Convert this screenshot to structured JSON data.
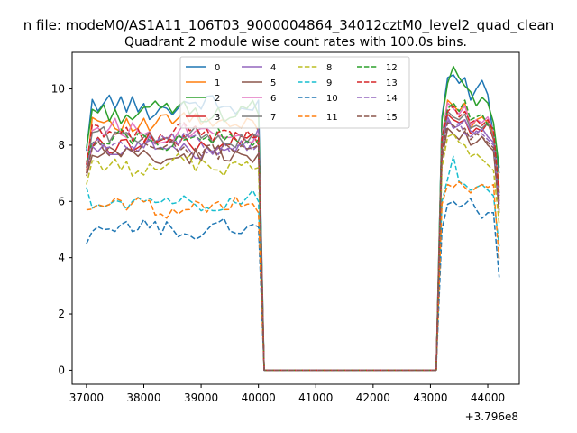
{
  "chart_data": {
    "type": "line",
    "suptitle": "n file: modeM0/AS1A11_106T03_9000004864_34012cztM0_level2_quad_clean",
    "title": "Quadrant 2 module wise count rates with 100.0s bins.",
    "xlabel": "",
    "ylabel": "",
    "x_offset_label": "+3.796e8",
    "xlim": [
      36750,
      44550
    ],
    "ylim": [
      -0.5,
      11.3
    ],
    "xticks": [
      37000,
      38000,
      39000,
      40000,
      41000,
      42000,
      43000,
      44000
    ],
    "xtick_labels": [
      "37000",
      "38000",
      "39000",
      "40000",
      "41000",
      "42000",
      "43000",
      "44000"
    ],
    "yticks": [
      0,
      2,
      4,
      6,
      8,
      10
    ],
    "ytick_labels": [
      "0",
      "2",
      "4",
      "6",
      "8",
      "10"
    ],
    "legend_location": "upper center",
    "grid": false,
    "x": {
      "segment1": {
        "start": 37000,
        "step": 100,
        "count": 31
      },
      "gap": [
        40100,
        43100
      ],
      "segment2": {
        "start": 43100,
        "step": 100,
        "count": 12
      }
    },
    "series": [
      {
        "name": "0",
        "color": "#1f77b4",
        "dash": "solid",
        "seg1_level": 9.4,
        "seg1_start": 7.8,
        "seg1_end": 9.6,
        "seg1_amp": 0.35,
        "seg2": [
          2.6,
          9.0,
          10.4,
          10.5,
          10.2,
          10.4,
          9.6,
          10.0,
          10.3,
          9.8,
          8.3,
          7.0
        ]
      },
      {
        "name": "1",
        "color": "#ff7f0e",
        "dash": "solid",
        "seg1_level": 8.8,
        "seg1_start": 7.0,
        "seg1_end": 8.5,
        "seg1_amp": 0.3,
        "seg2": [
          2.3,
          8.2,
          9.6,
          9.4,
          9.2,
          9.5,
          8.6,
          8.9,
          9.0,
          8.8,
          8.4,
          6.5
        ]
      },
      {
        "name": "2",
        "color": "#2ca02c",
        "dash": "solid",
        "seg1_level": 9.2,
        "seg1_start": 7.9,
        "seg1_end": 9.1,
        "seg1_amp": 0.3,
        "seg2": [
          2.5,
          8.9,
          10.2,
          10.8,
          10.4,
          10.1,
          9.9,
          9.4,
          9.7,
          9.5,
          8.8,
          7.2
        ]
      },
      {
        "name": "3",
        "color": "#d62728",
        "dash": "solid",
        "seg1_level": 8.1,
        "seg1_start": 7.1,
        "seg1_end": 8.0,
        "seg1_amp": 0.3,
        "seg2": [
          2.2,
          8.0,
          9.1,
          8.9,
          8.8,
          8.9,
          8.4,
          8.6,
          8.5,
          8.8,
          8.2,
          6.0
        ]
      },
      {
        "name": "4",
        "color": "#9467bd",
        "dash": "solid",
        "seg1_level": 7.9,
        "seg1_start": 7.2,
        "seg1_end": 8.6,
        "seg1_amp": 0.3,
        "seg2": [
          2.2,
          7.9,
          9.0,
          8.6,
          8.7,
          8.9,
          8.5,
          8.4,
          8.6,
          8.3,
          8.1,
          5.9
        ]
      },
      {
        "name": "5",
        "color": "#8c564b",
        "dash": "solid",
        "seg1_level": 7.6,
        "seg1_start": 6.9,
        "seg1_end": 7.7,
        "seg1_amp": 0.3,
        "seg2": [
          2.1,
          7.5,
          8.6,
          8.4,
          8.2,
          8.5,
          8.0,
          8.1,
          8.3,
          8.0,
          7.8,
          5.6
        ]
      },
      {
        "name": "6",
        "color": "#e377c2",
        "dash": "solid",
        "seg1_level": 8.5,
        "seg1_start": 7.3,
        "seg1_end": 8.4,
        "seg1_amp": 0.35,
        "seg2": [
          2.3,
          8.4,
          9.5,
          9.3,
          9.1,
          9.4,
          8.7,
          8.9,
          8.8,
          9.0,
          8.5,
          6.2
        ]
      },
      {
        "name": "7",
        "color": "#7f7f7f",
        "dash": "solid",
        "seg1_level": 8.3,
        "seg1_start": 7.2,
        "seg1_end": 8.3,
        "seg1_amp": 0.3,
        "seg2": [
          2.2,
          8.1,
          9.2,
          9.0,
          8.9,
          9.1,
          8.6,
          8.7,
          8.6,
          8.8,
          8.3,
          6.1
        ]
      },
      {
        "name": "8",
        "color": "#bcbd22",
        "dash": "dashed",
        "seg1_level": 7.3,
        "seg1_start": 6.6,
        "seg1_end": 7.2,
        "seg1_amp": 0.3,
        "seg2": [
          2.0,
          7.2,
          8.3,
          8.4,
          8.1,
          8.0,
          7.6,
          7.7,
          7.5,
          7.3,
          7.1,
          5.2
        ]
      },
      {
        "name": "9",
        "color": "#17becf",
        "dash": "dashed",
        "seg1_level": 6.0,
        "seg1_start": 6.5,
        "seg1_end": 6.0,
        "seg1_amp": 0.25,
        "seg2": [
          1.7,
          6.0,
          6.8,
          7.6,
          6.7,
          6.6,
          6.4,
          6.5,
          6.6,
          6.4,
          6.2,
          4.4
        ]
      },
      {
        "name": "10",
        "color": "#1f77b4",
        "dash": "dashed",
        "seg1_level": 5.0,
        "seg1_start": 4.5,
        "seg1_end": 5.1,
        "seg1_amp": 0.3,
        "seg2": [
          1.4,
          5.0,
          5.9,
          6.0,
          5.8,
          5.9,
          6.1,
          5.7,
          5.4,
          5.6,
          5.6,
          3.3
        ]
      },
      {
        "name": "11",
        "color": "#ff7f0e",
        "dash": "dashed",
        "seg1_level": 5.8,
        "seg1_start": 5.7,
        "seg1_end": 5.6,
        "seg1_amp": 0.3,
        "seg2": [
          1.6,
          5.9,
          6.6,
          6.5,
          6.7,
          6.5,
          6.3,
          6.5,
          6.6,
          6.5,
          6.6,
          3.9
        ]
      },
      {
        "name": "12",
        "color": "#2ca02c",
        "dash": "dashed",
        "seg1_level": 8.2,
        "seg1_start": 7.4,
        "seg1_end": 8.2,
        "seg1_amp": 0.3,
        "seg2": [
          2.3,
          8.3,
          9.3,
          9.5,
          9.2,
          9.6,
          8.9,
          9.0,
          9.1,
          8.7,
          8.6,
          6.3
        ]
      },
      {
        "name": "13",
        "color": "#d62728",
        "dash": "dashed",
        "seg1_level": 8.4,
        "seg1_start": 7.3,
        "seg1_end": 8.3,
        "seg1_amp": 0.3,
        "seg2": [
          2.3,
          8.2,
          9.2,
          9.4,
          9.0,
          9.2,
          8.8,
          8.9,
          8.7,
          8.9,
          8.5,
          6.2
        ]
      },
      {
        "name": "14",
        "color": "#9467bd",
        "dash": "dashed",
        "seg1_level": 8.0,
        "seg1_start": 7.0,
        "seg1_end": 8.0,
        "seg1_amp": 0.3,
        "seg2": [
          2.2,
          7.8,
          8.9,
          8.6,
          8.8,
          8.4,
          8.3,
          8.5,
          8.4,
          8.2,
          8.0,
          5.8
        ]
      },
      {
        "name": "15",
        "color": "#8c564b",
        "dash": "dashed",
        "seg1_level": 7.9,
        "seg1_start": 7.0,
        "seg1_end": 8.0,
        "seg1_amp": 0.3,
        "seg2": [
          2.2,
          7.8,
          8.8,
          8.7,
          8.5,
          8.6,
          8.2,
          8.4,
          8.3,
          8.1,
          7.9,
          5.7
        ]
      }
    ]
  }
}
